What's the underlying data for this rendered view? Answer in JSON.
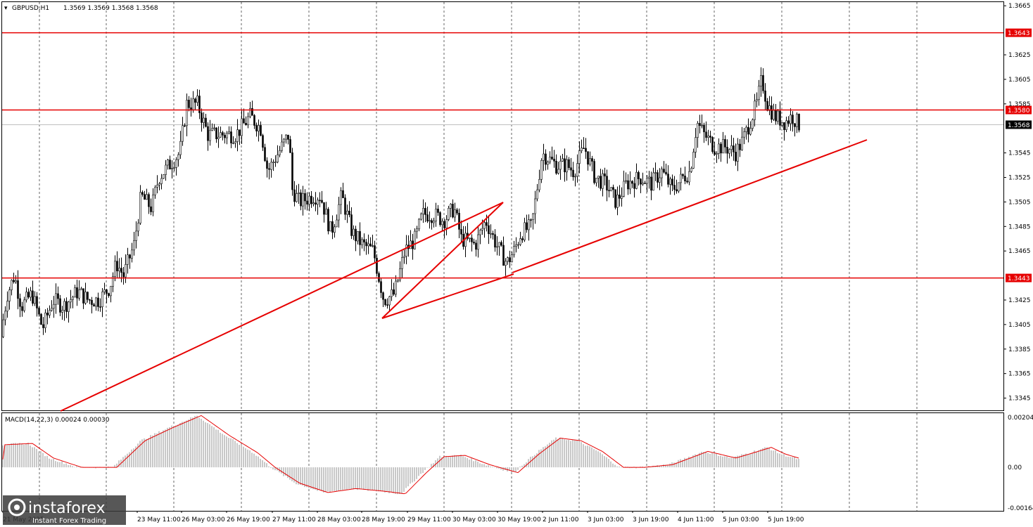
{
  "header": {
    "symbol_label": "GBPUSD,H1",
    "ohlc_label": "1.3569 1.3569 1.3568 1.3568",
    "macd_label": "MACD(14,22,3) 0.00024 0.00030"
  },
  "colors": {
    "level_line": "#e60000",
    "macd_signal": "#e60000",
    "macd_hist": "#c8c8c8",
    "candle": "#000000",
    "current_price_line": "#c0c0c0",
    "grid": "#000000"
  },
  "watermark": {
    "brand": "instaforex",
    "tagline": "Instant Forex Trading"
  },
  "price_axis": {
    "ticks": [
      "1.3665",
      "1.3625",
      "1.3605",
      "1.3585",
      "1.3545",
      "1.3525",
      "1.3505",
      "1.3485",
      "1.3465",
      "1.3425",
      "1.3405",
      "1.3385",
      "1.3365",
      "1.3345"
    ],
    "current_price": "1.3568"
  },
  "macd_axis": {
    "ticks": [
      "0.00204",
      "0.00",
      "-0.00164"
    ]
  },
  "levels": [
    {
      "price": 1.3643,
      "label": "1.3643"
    },
    {
      "price": 1.358,
      "label": "1.3580"
    },
    {
      "price": 1.3443,
      "label": "1.3443"
    }
  ],
  "time_axis": {
    "labels": [
      "21 May 2025",
      "23 May 11:00",
      "26 May 03:00",
      "26 May 19:00",
      "27 May 11:00",
      "28 May 03:00",
      "28 May 19:00",
      "29 May 11:00",
      "30 May 03:00",
      "30 May 19:00",
      "2 Jun 11:00",
      "3 Jun 03:00",
      "3 Jun 19:00",
      "4 Jun 11:00",
      "5 Jun 03:00",
      "5 Jun 19:00"
    ]
  },
  "chart_data": {
    "type": "candlestick",
    "symbol": "GBPUSD",
    "timeframe": "H1",
    "ylim": [
      1.3335,
      1.3668
    ],
    "levels": [
      1.3643,
      1.358,
      1.3443
    ],
    "trendlines": [
      {
        "from": [
          "21 May",
          1.3333
        ],
        "to": [
          "30 May 19:00",
          1.3508
        ]
      },
      {
        "from": [
          "28 May 19:00",
          1.3413
        ],
        "to": [
          "30 May 19:00",
          1.3505
        ]
      },
      {
        "from": [
          "30 May 19:00",
          1.3447
        ],
        "to": [
          "6 Jun",
          1.3557
        ]
      }
    ],
    "price_anchors": [
      [
        0,
        1.3395
      ],
      [
        10,
        1.343
      ],
      [
        20,
        1.3445
      ],
      [
        30,
        1.342
      ],
      [
        45,
        1.343
      ],
      [
        60,
        1.3402
      ],
      [
        75,
        1.3425
      ],
      [
        90,
        1.342
      ],
      [
        110,
        1.3432
      ],
      [
        125,
        1.3425
      ],
      [
        140,
        1.3425
      ],
      [
        155,
        1.3435
      ],
      [
        165,
        1.3455
      ],
      [
        175,
        1.3445
      ],
      [
        190,
        1.347
      ],
      [
        200,
        1.351
      ],
      [
        215,
        1.35
      ],
      [
        225,
        1.3525
      ],
      [
        240,
        1.3535
      ],
      [
        255,
        1.3545
      ],
      [
        265,
        1.3585
      ],
      [
        280,
        1.3585
      ],
      [
        295,
        1.356
      ],
      [
        315,
        1.356
      ],
      [
        335,
        1.356
      ],
      [
        355,
        1.3575
      ],
      [
        370,
        1.3565
      ],
      [
        380,
        1.353
      ],
      [
        395,
        1.3545
      ],
      [
        410,
        1.356
      ],
      [
        415,
        1.3515
      ],
      [
        425,
        1.3505
      ],
      [
        445,
        1.351
      ],
      [
        455,
        1.351
      ],
      [
        470,
        1.348
      ],
      [
        485,
        1.351
      ],
      [
        500,
        1.348
      ],
      [
        515,
        1.347
      ],
      [
        530,
        1.3465
      ],
      [
        545,
        1.3425
      ],
      [
        560,
        1.343
      ],
      [
        575,
        1.3465
      ],
      [
        590,
        1.3475
      ],
      [
        600,
        1.3495
      ],
      [
        615,
        1.3495
      ],
      [
        630,
        1.349
      ],
      [
        645,
        1.35
      ],
      [
        655,
        1.3475
      ],
      [
        675,
        1.347
      ],
      [
        690,
        1.349
      ],
      [
        705,
        1.347
      ],
      [
        720,
        1.3455
      ],
      [
        730,
        1.3465
      ],
      [
        740,
        1.348
      ],
      [
        755,
        1.3485
      ],
      [
        770,
        1.3545
      ],
      [
        790,
        1.3535
      ],
      [
        805,
        1.3535
      ],
      [
        815,
        1.353
      ],
      [
        830,
        1.355
      ],
      [
        845,
        1.3525
      ],
      [
        860,
        1.352
      ],
      [
        875,
        1.3505
      ],
      [
        890,
        1.352
      ],
      [
        910,
        1.3525
      ],
      [
        925,
        1.352
      ],
      [
        940,
        1.353
      ],
      [
        955,
        1.3515
      ],
      [
        970,
        1.3525
      ],
      [
        980,
        1.353
      ],
      [
        990,
        1.357
      ],
      [
        1000,
        1.356
      ],
      [
        1015,
        1.355
      ],
      [
        1030,
        1.355
      ],
      [
        1045,
        1.3545
      ],
      [
        1055,
        1.3555
      ],
      [
        1065,
        1.357
      ],
      [
        1075,
        1.3585
      ],
      [
        1082,
        1.3605
      ],
      [
        1090,
        1.3585
      ],
      [
        1100,
        1.3575
      ],
      [
        1115,
        1.357
      ],
      [
        1125,
        1.3575
      ],
      [
        1135,
        1.3568
      ]
    ],
    "macd_anchors": [
      [
        0,
        0.00085
      ],
      [
        40,
        0.0009
      ],
      [
        70,
        0.00035
      ],
      [
        110,
        0.0
      ],
      [
        160,
        0.0
      ],
      [
        200,
        0.001
      ],
      [
        240,
        0.0015
      ],
      [
        280,
        0.00195
      ],
      [
        320,
        0.0012
      ],
      [
        360,
        0.00055
      ],
      [
        385,
        0.0
      ],
      [
        420,
        -0.0006
      ],
      [
        460,
        -0.00095
      ],
      [
        500,
        -0.0008
      ],
      [
        540,
        -0.0009
      ],
      [
        570,
        -0.001
      ],
      [
        600,
        -0.0002
      ],
      [
        625,
        0.0004
      ],
      [
        655,
        0.00045
      ],
      [
        690,
        0.0001
      ],
      [
        730,
        -0.0002
      ],
      [
        760,
        0.0005
      ],
      [
        790,
        0.0011
      ],
      [
        820,
        0.001
      ],
      [
        850,
        0.0006
      ],
      [
        880,
        0.0
      ],
      [
        910,
        0.0
      ],
      [
        950,
        0.0001
      ],
      [
        980,
        0.0004
      ],
      [
        1000,
        0.0006
      ],
      [
        1040,
        0.00035
      ],
      [
        1090,
        0.00075
      ],
      [
        1110,
        0.0005
      ],
      [
        1135,
        0.0003
      ]
    ]
  }
}
